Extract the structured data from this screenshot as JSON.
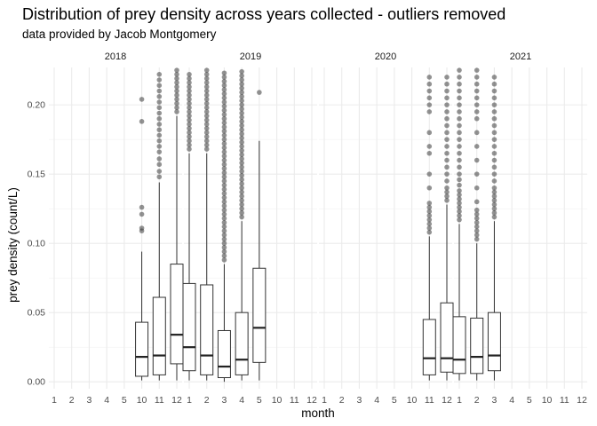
{
  "chart_data": {
    "type": "boxplot",
    "title": "Distribution of prey density across years collected - outliers removed",
    "subtitle": "data provided by Jacob Montgomery",
    "xlabel": "month",
    "ylabel": "prey density (count/L)",
    "ylim": [
      -0.005,
      0.227
    ],
    "yticks": [
      0.0,
      0.05,
      0.1,
      0.15,
      0.2
    ],
    "ytick_labels": [
      "0.00",
      "0.05",
      "0.10",
      "0.15",
      "0.20"
    ],
    "x_categories": [
      "1",
      "2",
      "3",
      "4",
      "5",
      "10",
      "11",
      "12"
    ],
    "grid": true,
    "facets": [
      {
        "label": "2018",
        "boxes": [
          {
            "month": "10",
            "whisker_low": 0.001,
            "q1": 0.004,
            "median": 0.018,
            "q3": 0.043,
            "whisker_high": 0.094,
            "outliers": [
              0.109,
              0.111,
              0.121,
              0.126,
              0.188,
              0.204
            ]
          },
          {
            "month": "11",
            "whisker_low": 0.001,
            "q1": 0.005,
            "median": 0.019,
            "q3": 0.061,
            "whisker_high": 0.144,
            "outliers": [
              0.148,
              0.152,
              0.157,
              0.161,
              0.166,
              0.17,
              0.174,
              0.178,
              0.182,
              0.186,
              0.19,
              0.194,
              0.198,
              0.202,
              0.206,
              0.21,
              0.214,
              0.218,
              0.222
            ]
          },
          {
            "month": "12",
            "whisker_low": 0.001,
            "q1": 0.013,
            "median": 0.034,
            "q3": 0.085,
            "whisker_high": 0.192,
            "outliers": [
              0.195,
              0.198,
              0.201,
              0.204,
              0.207,
              0.21,
              0.213,
              0.216,
              0.219,
              0.222,
              0.225
            ]
          }
        ]
      },
      {
        "label": "2019",
        "boxes": [
          {
            "month": "1",
            "whisker_low": 0.001,
            "q1": 0.008,
            "median": 0.025,
            "q3": 0.071,
            "whisker_high": 0.165,
            "outliers": [
              0.168,
              0.171,
              0.174,
              0.177,
              0.18,
              0.183,
              0.186,
              0.189,
              0.192,
              0.195,
              0.198,
              0.201,
              0.204,
              0.207,
              0.21,
              0.213,
              0.216,
              0.219,
              0.222
            ]
          },
          {
            "month": "2",
            "whisker_low": 0.001,
            "q1": 0.005,
            "median": 0.019,
            "q3": 0.07,
            "whisker_high": 0.165,
            "outliers": [
              0.168,
              0.171,
              0.174,
              0.177,
              0.18,
              0.183,
              0.186,
              0.189,
              0.192,
              0.195,
              0.198,
              0.201,
              0.204,
              0.207,
              0.21,
              0.213,
              0.216,
              0.219,
              0.222,
              0.225
            ]
          },
          {
            "month": "3",
            "whisker_low": 0.0,
            "q1": 0.003,
            "median": 0.011,
            "q3": 0.037,
            "whisker_high": 0.085,
            "outliers": [
              0.088,
              0.091,
              0.094,
              0.097,
              0.1,
              0.103,
              0.106,
              0.109,
              0.112,
              0.115,
              0.118,
              0.121,
              0.124,
              0.127,
              0.13,
              0.133,
              0.136,
              0.139,
              0.142,
              0.145,
              0.148,
              0.151,
              0.154,
              0.157,
              0.16,
              0.163,
              0.166,
              0.169,
              0.172,
              0.175,
              0.178,
              0.181,
              0.184,
              0.187,
              0.19,
              0.193,
              0.196,
              0.199,
              0.202,
              0.205,
              0.208,
              0.211,
              0.214,
              0.217,
              0.22,
              0.223
            ]
          },
          {
            "month": "4",
            "whisker_low": 0.001,
            "q1": 0.005,
            "median": 0.016,
            "q3": 0.05,
            "whisker_high": 0.116,
            "outliers": [
              0.119,
              0.122,
              0.125,
              0.128,
              0.131,
              0.134,
              0.137,
              0.14,
              0.143,
              0.146,
              0.149,
              0.152,
              0.155,
              0.158,
              0.161,
              0.164,
              0.167,
              0.17,
              0.173,
              0.176,
              0.179,
              0.182,
              0.185,
              0.188,
              0.191,
              0.194,
              0.197,
              0.2,
              0.203,
              0.206,
              0.209,
              0.212,
              0.215,
              0.218,
              0.221,
              0.224
            ]
          },
          {
            "month": "5",
            "whisker_low": 0.001,
            "q1": 0.014,
            "median": 0.039,
            "q3": 0.082,
            "whisker_high": 0.174,
            "outliers": [
              0.209
            ]
          }
        ]
      },
      {
        "label": "2020",
        "boxes": [
          {
            "month": "11",
            "whisker_low": 0.001,
            "q1": 0.005,
            "median": 0.017,
            "q3": 0.045,
            "whisker_high": 0.105,
            "outliers": [
              0.108,
              0.111,
              0.114,
              0.117,
              0.12,
              0.123,
              0.126,
              0.129,
              0.14,
              0.15,
              0.165,
              0.17,
              0.18,
              0.195,
              0.2,
              0.205,
              0.21,
              0.215,
              0.22
            ]
          },
          {
            "month": "12",
            "whisker_low": 0.001,
            "q1": 0.007,
            "median": 0.017,
            "q3": 0.057,
            "whisker_high": 0.128,
            "outliers": [
              0.131,
              0.134,
              0.137,
              0.14,
              0.145,
              0.15,
              0.155,
              0.16,
              0.165,
              0.17,
              0.175,
              0.18,
              0.185,
              0.19,
              0.195,
              0.2,
              0.205,
              0.21,
              0.215,
              0.22
            ]
          }
        ]
      },
      {
        "label": "2021",
        "boxes": [
          {
            "month": "1",
            "whisker_low": 0.001,
            "q1": 0.006,
            "median": 0.016,
            "q3": 0.047,
            "whisker_high": 0.114,
            "outliers": [
              0.117,
              0.12,
              0.123,
              0.126,
              0.129,
              0.132,
              0.135,
              0.138,
              0.142,
              0.146,
              0.15,
              0.155,
              0.16,
              0.165,
              0.17,
              0.175,
              0.18,
              0.185,
              0.19,
              0.195,
              0.2,
              0.205,
              0.21,
              0.215,
              0.22,
              0.225
            ]
          },
          {
            "month": "2",
            "whisker_low": 0.001,
            "q1": 0.006,
            "median": 0.018,
            "q3": 0.046,
            "whisker_high": 0.1,
            "outliers": [
              0.103,
              0.106,
              0.109,
              0.112,
              0.115,
              0.118,
              0.121,
              0.124,
              0.13,
              0.14,
              0.15,
              0.16,
              0.17,
              0.18,
              0.19,
              0.195,
              0.2,
              0.205,
              0.21,
              0.215,
              0.22,
              0.225
            ]
          },
          {
            "month": "3",
            "whisker_low": 0.001,
            "q1": 0.008,
            "median": 0.019,
            "q3": 0.05,
            "whisker_high": 0.116,
            "outliers": [
              0.119,
              0.122,
              0.125,
              0.128,
              0.131,
              0.134,
              0.137,
              0.14,
              0.145,
              0.15,
              0.155,
              0.16,
              0.165,
              0.17,
              0.175,
              0.18,
              0.185,
              0.19,
              0.195,
              0.2,
              0.205,
              0.21,
              0.215,
              0.22
            ]
          }
        ]
      }
    ]
  }
}
